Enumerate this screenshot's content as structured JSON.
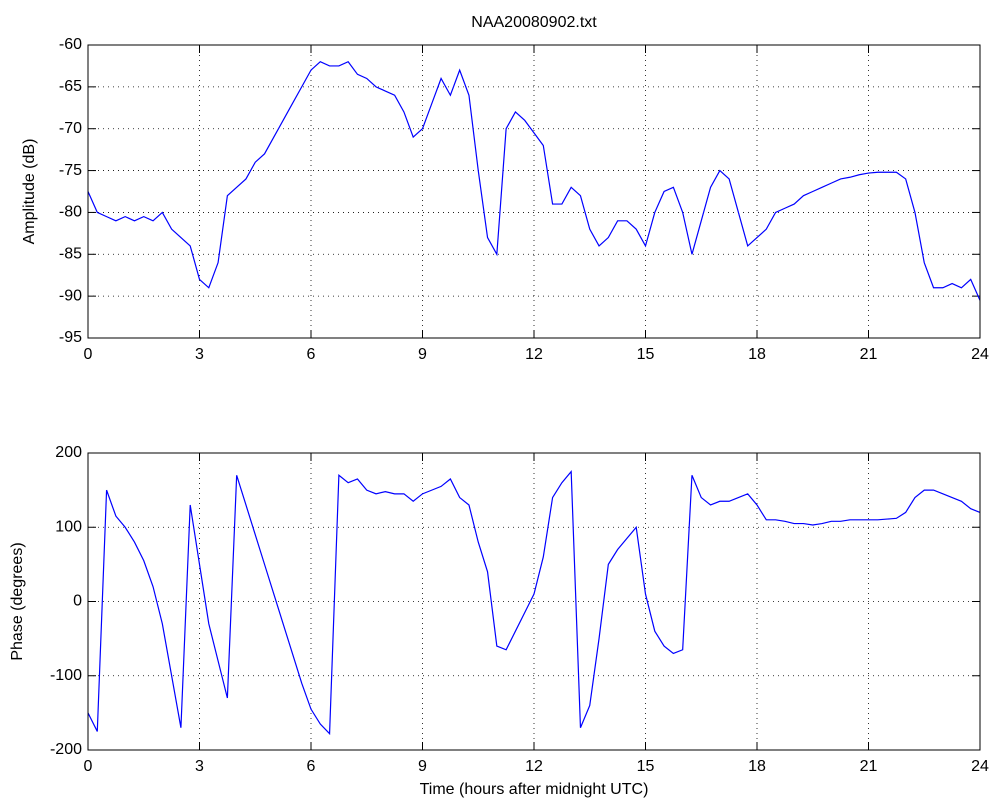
{
  "chart_data": [
    {
      "type": "line",
      "title": "NAA20080902.txt",
      "ylabel": "Amplitude (dB)",
      "x": [
        0,
        0.25,
        0.5,
        0.75,
        1,
        1.25,
        1.5,
        1.75,
        2,
        2.25,
        2.5,
        2.75,
        3,
        3.25,
        3.5,
        3.75,
        4,
        4.25,
        4.5,
        4.75,
        5,
        5.25,
        5.5,
        5.75,
        6,
        6.25,
        6.5,
        6.75,
        7,
        7.25,
        7.5,
        7.75,
        8,
        8.25,
        8.5,
        8.75,
        9,
        9.25,
        9.5,
        9.75,
        10,
        10.25,
        10.5,
        10.75,
        11,
        11.25,
        11.5,
        11.75,
        12,
        12.25,
        12.5,
        12.75,
        13,
        13.25,
        13.5,
        13.75,
        14,
        14.25,
        14.5,
        14.75,
        15,
        15.25,
        15.5,
        15.75,
        16,
        16.25,
        16.5,
        16.75,
        17,
        17.25,
        17.5,
        17.75,
        18,
        18.25,
        18.5,
        18.75,
        19,
        19.25,
        19.5,
        19.75,
        20,
        20.25,
        20.5,
        20.75,
        21,
        21.25,
        21.5,
        21.75,
        22,
        22.25,
        22.5,
        22.75,
        23,
        23.25,
        23.5,
        23.75,
        24
      ],
      "series": [
        {
          "color": "#0000ff",
          "values": [
            -77.5,
            -80,
            -80.5,
            -81,
            -80.5,
            -81,
            -80.5,
            -81,
            -80,
            -82,
            -83,
            -84,
            -88,
            -89,
            -86,
            -78,
            -77,
            -76,
            -74,
            -73,
            -71,
            -69,
            -67,
            -65,
            -63,
            -62,
            -62.5,
            -62.5,
            -62,
            -63.5,
            -64,
            -65,
            -65.5,
            -66,
            -68,
            -71,
            -70,
            -67,
            -64,
            -66,
            -63,
            -66,
            -75,
            -83,
            -85,
            -70,
            -68,
            -69,
            -70.5,
            -72,
            -79,
            -79,
            -77,
            -78,
            -82,
            -84,
            -83,
            -81,
            -81,
            -82,
            -84,
            -80,
            -77.5,
            -77,
            -80,
            -85,
            -81,
            -77,
            -75,
            -76,
            -80,
            -84,
            -83,
            -82,
            -80,
            -79.5,
            -79,
            -78,
            -77.5,
            -77,
            -76.5,
            -76,
            -75.8,
            -75.5,
            -75.3,
            -75.2,
            -75.2,
            -75.2,
            -76,
            -80,
            -86,
            -89,
            -89,
            -88.5,
            -89,
            -88,
            -90.5
          ]
        }
      ],
      "xlim": [
        0,
        24
      ],
      "xticks": [
        0,
        3,
        6,
        9,
        12,
        15,
        18,
        21,
        24
      ],
      "ylim": [
        -95,
        -60
      ],
      "yticks": [
        -95,
        -90,
        -85,
        -80,
        -75,
        -70,
        -65,
        -60
      ],
      "grid": true
    },
    {
      "type": "line",
      "xlabel": "Time (hours after midnight UTC)",
      "ylabel": "Phase (degrees)",
      "x": [
        0,
        0.25,
        0.5,
        0.75,
        1,
        1.25,
        1.5,
        1.75,
        2,
        2.25,
        2.5,
        2.75,
        3,
        3.25,
        3.5,
        3.75,
        4,
        4.25,
        4.5,
        4.75,
        5,
        5.25,
        5.5,
        5.75,
        6,
        6.25,
        6.5,
        6.75,
        7,
        7.25,
        7.5,
        7.75,
        8,
        8.25,
        8.5,
        8.75,
        9,
        9.25,
        9.5,
        9.75,
        10,
        10.25,
        10.5,
        10.75,
        11,
        11.25,
        11.5,
        11.75,
        12,
        12.25,
        12.5,
        12.75,
        13,
        13.25,
        13.5,
        13.75,
        14,
        14.25,
        14.5,
        14.75,
        15,
        15.25,
        15.5,
        15.75,
        16,
        16.25,
        16.5,
        16.75,
        17,
        17.25,
        17.5,
        17.75,
        18,
        18.25,
        18.5,
        18.75,
        19,
        19.25,
        19.5,
        19.75,
        20,
        20.25,
        20.5,
        20.75,
        21,
        21.25,
        21.5,
        21.75,
        22,
        22.25,
        22.5,
        22.75,
        23,
        23.25,
        23.5,
        23.75,
        24
      ],
      "series": [
        {
          "color": "#0000ff",
          "values": [
            -150,
            -175,
            150,
            115,
            100,
            80,
            55,
            20,
            -30,
            -100,
            -170,
            130,
            50,
            -30,
            -80,
            -130,
            170,
            130,
            90,
            50,
            10,
            -30,
            -70,
            -110,
            -145,
            -165,
            -178,
            170,
            160,
            165,
            150,
            145,
            148,
            145,
            145,
            135,
            145,
            150,
            155,
            165,
            140,
            130,
            80,
            40,
            -60,
            -65,
            -40,
            -15,
            10,
            60,
            140,
            160,
            175,
            -170,
            -140,
            -50,
            50,
            70,
            85,
            100,
            10,
            -40,
            -60,
            -70,
            -65,
            170,
            140,
            130,
            135,
            135,
            140,
            145,
            130,
            110,
            110,
            108,
            105,
            105,
            103,
            105,
            108,
            108,
            110,
            110,
            110,
            110,
            111,
            112,
            120,
            140,
            150,
            150,
            145,
            140,
            135,
            125,
            120
          ]
        }
      ],
      "xlim": [
        0,
        24
      ],
      "xticks": [
        0,
        3,
        6,
        9,
        12,
        15,
        18,
        21,
        24
      ],
      "ylim": [
        -200,
        200
      ],
      "yticks": [
        -200,
        -100,
        0,
        100,
        200
      ],
      "grid": true
    }
  ]
}
